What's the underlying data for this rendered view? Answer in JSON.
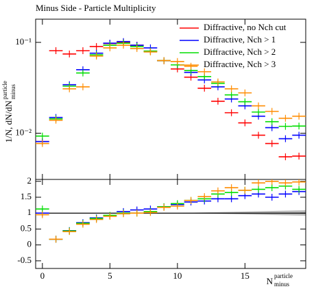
{
  "chart_data": [
    {
      "type": "errorbar",
      "title": "Minus Side - Particle Multiplicity",
      "y_label": "1/N, dN/dN",
      "y_label_sup": "particle",
      "y_label_sub": "minus",
      "log_y": true,
      "legend": "top-right",
      "x": [
        0,
        1,
        2,
        3,
        4,
        5,
        6,
        7,
        8,
        9,
        10,
        11,
        12,
        13,
        14,
        15,
        16,
        17,
        18,
        19
      ],
      "xlim": [
        -0.5,
        19.5
      ],
      "ylim": [
        0.0031,
        0.18
      ],
      "yticks": [
        {
          "value": 0.01,
          "label": "10⁻²"
        },
        {
          "value": 0.1,
          "label": "10⁻¹"
        }
      ],
      "series": [
        {
          "name": "Diffractive, no Nch cut",
          "color": "#ff0000",
          "values": [
            0.0081,
            0.081,
            0.0745,
            0.081,
            0.09,
            0.097,
            0.1,
            0.093,
            0.08,
            0.0627,
            0.051,
            0.0414,
            0.0313,
            0.0225,
            0.0168,
            0.013,
            0.0095,
            0.0077,
            0.0055,
            0.0056
          ]
        },
        {
          "name": "Diffractive, Nch > 1",
          "color": "#0000ff",
          "values": [
            0.0081,
            0.0149,
            0.0342,
            0.05,
            0.076,
            0.098,
            0.102,
            0.093,
            0.087,
            0.063,
            0.0565,
            0.0467,
            0.0386,
            0.0324,
            0.0238,
            0.02,
            0.0154,
            0.0115,
            0.0087,
            0.0095
          ]
        },
        {
          "name": "Diffractive, Nch > 2",
          "color": "#00dd00",
          "values": [
            0.0093,
            0.0144,
            0.033,
            0.046,
            0.073,
            0.093,
            0.098,
            0.09,
            0.08,
            0.063,
            0.0565,
            0.049,
            0.042,
            0.0354,
            0.0264,
            0.0222,
            0.0171,
            0.0134,
            0.0119,
            0.012
          ]
        },
        {
          "name": "Diffractive, Nch > 3",
          "color": "#ff8c00",
          "values": [
            0.0077,
            0.0139,
            0.0308,
            0.0324,
            0.0707,
            0.087,
            0.093,
            0.0856,
            0.0785,
            0.063,
            0.0616,
            0.0546,
            0.0475,
            0.0367,
            0.0308,
            0.0278,
            0.02,
            0.0174,
            0.0146,
            0.0154
          ]
        }
      ]
    },
    {
      "type": "ratio",
      "x_label": "N",
      "x_label_sup": "particle",
      "x_label_sub": "minus",
      "x": [
        0,
        1,
        2,
        3,
        4,
        5,
        6,
        7,
        8,
        9,
        10,
        11,
        12,
        13,
        14,
        15,
        16,
        17,
        18,
        19
      ],
      "xlim": [
        -0.5,
        19.5
      ],
      "xticks": [
        0,
        5,
        10,
        15
      ],
      "ylim": [
        -0.74,
        2.06
      ],
      "yticks": [
        -0.5,
        0,
        0.5,
        1,
        1.5,
        2
      ],
      "reference": 1,
      "series": [
        {
          "color": "#0000ff",
          "values": [
            1.0,
            0.18,
            0.45,
            0.7,
            0.85,
            0.92,
            1.05,
            1.1,
            1.13,
            1.2,
            1.27,
            1.35,
            1.38,
            1.45,
            1.45,
            1.55,
            1.6,
            1.5,
            1.6,
            1.68
          ]
        },
        {
          "color": "#00dd00",
          "values": [
            1.13,
            0.18,
            0.44,
            0.68,
            0.83,
            0.93,
            1.0,
            1.0,
            1.05,
            1.2,
            1.3,
            1.4,
            1.45,
            1.6,
            1.65,
            1.72,
            1.75,
            1.8,
            1.85,
            1.75
          ]
        },
        {
          "color": "#ff8c00",
          "values": [
            0.95,
            0.18,
            0.42,
            0.65,
            0.8,
            0.9,
            0.98,
            1.0,
            1.02,
            1.18,
            1.22,
            1.4,
            1.52,
            1.7,
            1.8,
            1.72,
            1.95,
            2.0,
            1.95,
            1.98
          ]
        }
      ]
    }
  ]
}
